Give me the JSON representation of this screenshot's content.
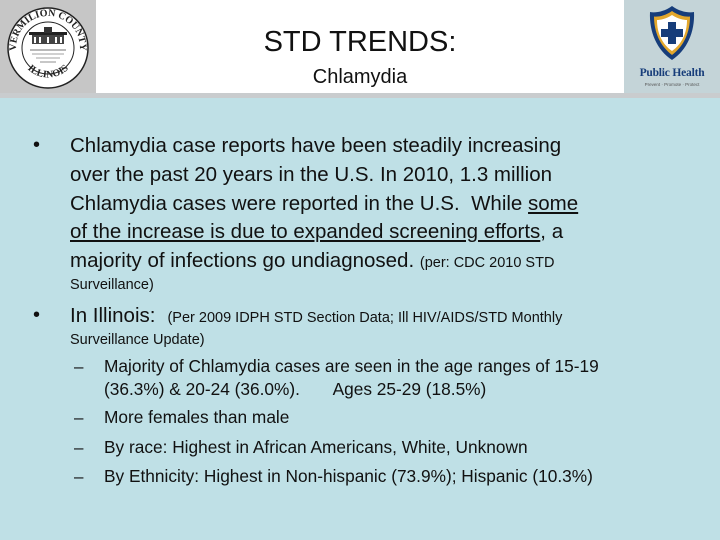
{
  "header": {
    "title": "STD TRENDS:",
    "subtitle": "Chlamydia"
  },
  "logos": {
    "left": {
      "ring_top": "VERMILION COUNTY",
      "ring_bottom": "ILLINOIS",
      "icon": "county-seal"
    },
    "right": {
      "wordmark": "Public Health",
      "tagline": "Prevent · Promote · Protect",
      "icon": "public-health-shield"
    }
  },
  "bullets": [
    {
      "lines": [
        "Chlamydia case reports have been steadily increasing",
        "over the past 20 years in the U.S.  In 2010, 1.3 million",
        "Chlamydia cases were reported in the U.S.  While "
      ],
      "underlined_1": "some",
      "underlined_2": "of the increase is due to expanded screening efforts",
      "after_underline": ", a",
      "line5": "majority of infections go undiagnosed.",
      "source_a": "(per: CDC 2010 STD",
      "source_b": "Surveillance)"
    },
    {
      "lead": "In Illinois:",
      "source_a": "(Per 2009 IDPH STD Section Data; Ill HIV/AIDS/STD Monthly",
      "source_b": "Surveillance Update)",
      "subitems": [
        "Majority of Chlamydia cases are seen in the age ranges of 15-19",
        "(36.3%) & 20-24 (36.0%).       Ages 25-29 (18.5%)",
        "More females than male",
        "By race: Highest in African Americans, White, Unknown",
        "By Ethnicity: Highest in Non-hispanic (73.9%); Hispanic (10.3%)"
      ]
    }
  ],
  "colors": {
    "background": "#bfe0e6",
    "header_bg": "#ffffff",
    "logo_left_bg": "#c6c6c6",
    "logo_right_bg": "#c4d4d8",
    "ph_blue": "#173d7a",
    "ph_gold": "#e3a72c"
  }
}
